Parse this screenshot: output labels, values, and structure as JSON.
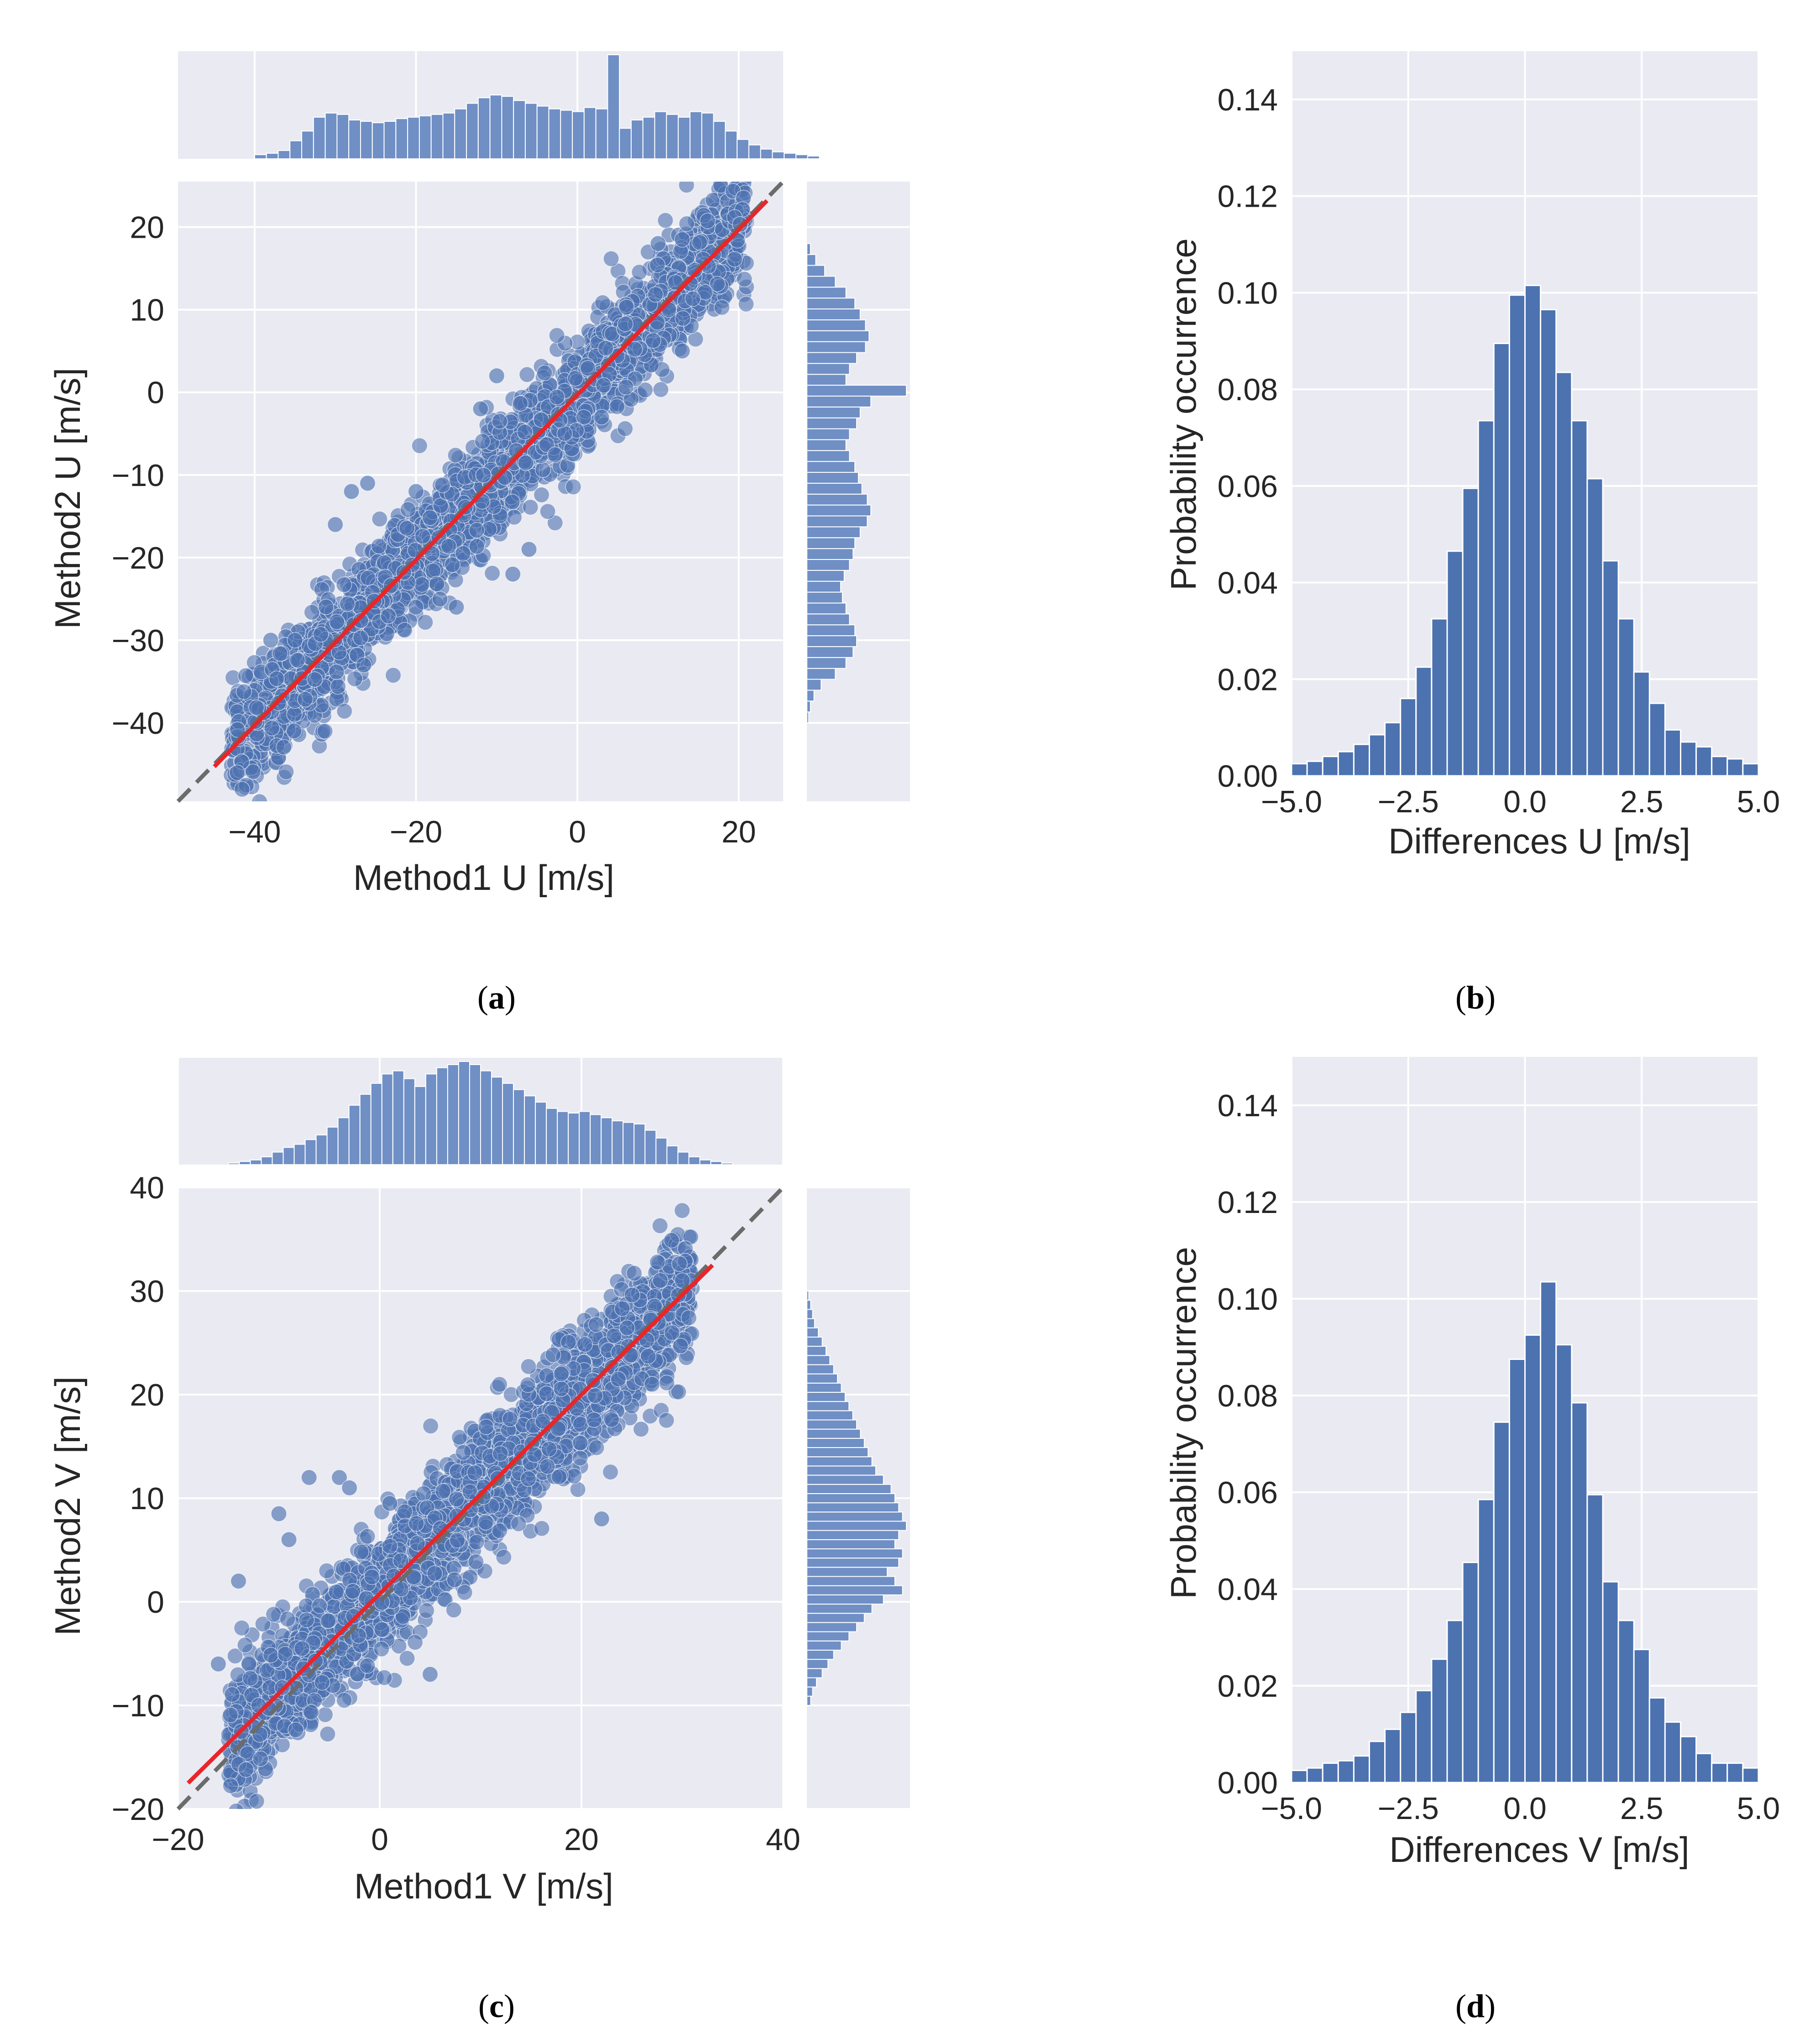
{
  "chart_data": [
    {
      "id": "a",
      "type": "scatter",
      "caption": "a",
      "xlabel": "Method1 U [m/s]",
      "ylabel": "Method2 U [m/s]",
      "xlim": [
        -49.5,
        25.5
      ],
      "ylim": [
        -49.5,
        25.5
      ],
      "xticks": [
        -40,
        -20,
        0,
        20
      ],
      "xtick_labels": [
        "−40",
        "−20",
        "0",
        "20"
      ],
      "yticks": [
        -40,
        -30,
        -20,
        -10,
        0,
        10,
        20
      ],
      "ytick_labels": [
        "−40",
        "−30",
        "−20",
        "−10",
        "0",
        "10",
        "20"
      ],
      "identity_line": true,
      "fit_line": {
        "x": [
          -45,
          23.5
        ],
        "y": [
          -45.3,
          23.2
        ],
        "color": "#e8262a"
      },
      "scatter_spec": {
        "n": 2800,
        "x_range": [
          -43,
          21
        ],
        "slope": 1.0,
        "intercept": -0.2,
        "noise": 3.4,
        "seed": 11
      },
      "points": [
        {
          "x": -28,
          "y": -12
        },
        {
          "x": -30,
          "y": -16
        },
        {
          "x": -26,
          "y": -11
        },
        {
          "x": -15,
          "y": -26
        },
        {
          "x": -8,
          "y": -22
        },
        {
          "x": 3,
          "y": -3
        },
        {
          "x": 10,
          "y": 18
        },
        {
          "x": 13,
          "y": 5
        },
        {
          "x": -10,
          "y": 2
        },
        {
          "x": -20,
          "y": -12
        },
        {
          "x": -35,
          "y": -30
        },
        {
          "x": 13,
          "y": 18.5
        },
        {
          "x": -6,
          "y": -19
        },
        {
          "x": -12,
          "y": -2
        },
        {
          "x": -38,
          "y": -30
        }
      ],
      "marg_x": {
        "range": [
          -40,
          30
        ],
        "counts": [
          3,
          4,
          6,
          13,
          20,
          30,
          33,
          32,
          28,
          27,
          26,
          27,
          29,
          30,
          31,
          32,
          33,
          36,
          40,
          44,
          46,
          45,
          42,
          40,
          38,
          36,
          35,
          34,
          37,
          36,
          75,
          22,
          28,
          30,
          34,
          32,
          30,
          34,
          33,
          27,
          20,
          14,
          10,
          7,
          5,
          4,
          3,
          2
        ]
      },
      "marg_y": {
        "range": [
          -40,
          18
        ],
        "counts": [
          1,
          2,
          4,
          8,
          16,
          22,
          26,
          28,
          27,
          24,
          22,
          20,
          19,
          21,
          24,
          26,
          27,
          30,
          34,
          36,
          34,
          31,
          29,
          27,
          24,
          22,
          24,
          28,
          30,
          36,
          56,
          22,
          24,
          28,
          33,
          35,
          33,
          30,
          27,
          22,
          16,
          10,
          5,
          2
        ]
      }
    },
    {
      "id": "b",
      "type": "bar",
      "caption": "b",
      "xlabel": "Differences U [m/s]",
      "ylabel": "Probability occurrence",
      "xlim": [
        -5.0,
        5.0
      ],
      "ylim": [
        0.0,
        0.15
      ],
      "xticks": [
        -5.0,
        -2.5,
        0.0,
        2.5,
        5.0
      ],
      "xtick_labels": [
        "−5.0",
        "−2.5",
        "0.0",
        "2.5",
        "5.0"
      ],
      "yticks": [
        0.0,
        0.02,
        0.04,
        0.06,
        0.08,
        0.1,
        0.12,
        0.14
      ],
      "ytick_labels": [
        "0.00",
        "0.02",
        "0.04",
        "0.06",
        "0.08",
        "0.10",
        "0.12",
        "0.14"
      ],
      "bin_edges_range": [
        -5.0,
        5.0
      ],
      "values": [
        0.0025,
        0.003,
        0.004,
        0.005,
        0.0065,
        0.0085,
        0.011,
        0.016,
        0.0225,
        0.0325,
        0.0465,
        0.0595,
        0.0735,
        0.0895,
        0.0995,
        0.1015,
        0.0965,
        0.0835,
        0.0735,
        0.0615,
        0.0445,
        0.0325,
        0.0215,
        0.015,
        0.0095,
        0.007,
        0.006,
        0.004,
        0.0035,
        0.0025
      ]
    },
    {
      "id": "c",
      "type": "scatter",
      "caption": "c",
      "xlabel": "Method1 V [m/s]",
      "ylabel": "Method2 V [m/s]",
      "xlim": [
        -20,
        40
      ],
      "ylim": [
        -20,
        40
      ],
      "xticks": [
        -20,
        0,
        20,
        40
      ],
      "xtick_labels": [
        "−20",
        "0",
        "20",
        "40"
      ],
      "yticks": [
        -20,
        -10,
        0,
        10,
        20,
        30,
        40
      ],
      "ytick_labels": [
        "−20",
        "−10",
        "0",
        "10",
        "20",
        "30",
        "40"
      ],
      "identity_line": true,
      "fit_line": {
        "x": [
          -19,
          33
        ],
        "y": [
          -17.5,
          32.5
        ],
        "color": "#e8262a"
      },
      "scatter_spec": {
        "n": 2800,
        "x_range": [
          -15,
          31
        ],
        "slope": 0.96,
        "intercept": 0.8,
        "noise": 3.0,
        "seed": 23
      },
      "points": [
        {
          "x": -7,
          "y": 12
        },
        {
          "x": -10,
          "y": 8.5
        },
        {
          "x": -4,
          "y": 12
        },
        {
          "x": 22,
          "y": 8
        },
        {
          "x": -16,
          "y": -6
        },
        {
          "x": -14,
          "y": 2
        },
        {
          "x": -12,
          "y": -10
        },
        {
          "x": 27,
          "y": 21
        },
        {
          "x": 30,
          "y": 31
        },
        {
          "x": 5,
          "y": -7
        },
        {
          "x": 1,
          "y": 9.5
        },
        {
          "x": -9,
          "y": 6
        },
        {
          "x": 18,
          "y": 22
        },
        {
          "x": -3,
          "y": 11
        }
      ],
      "marg_x": {
        "range": [
          -15,
          35
        ],
        "counts": [
          1,
          2,
          3,
          5,
          8,
          11,
          13,
          16,
          19,
          24,
          30,
          38,
          45,
          52,
          58,
          60,
          55,
          50,
          58,
          62,
          64,
          66,
          64,
          60,
          56,
          52,
          48,
          44,
          40,
          36,
          34,
          33,
          34,
          32,
          30,
          28,
          27,
          26,
          22,
          17,
          12,
          8,
          5,
          3,
          2,
          1
        ]
      },
      "marg_y": {
        "range": [
          -10,
          30
        ],
        "counts": [
          2,
          3,
          5,
          8,
          11,
          14,
          18,
          22,
          26,
          30,
          34,
          40,
          50,
          46,
          42,
          48,
          50,
          46,
          48,
          52,
          50,
          48,
          46,
          44,
          40,
          36,
          34,
          32,
          30,
          28,
          26,
          24,
          22,
          20,
          18,
          16,
          14,
          12,
          10,
          8,
          6,
          4,
          3,
          2,
          1
        ]
      }
    },
    {
      "id": "d",
      "type": "bar",
      "caption": "d",
      "xlabel": "Differences V [m/s]",
      "ylabel": "Probability occurrence",
      "xlim": [
        -5.0,
        5.0
      ],
      "ylim": [
        0.0,
        0.15
      ],
      "xticks": [
        -5.0,
        -2.5,
        0.0,
        2.5,
        5.0
      ],
      "xtick_labels": [
        "−5.0",
        "−2.5",
        "0.0",
        "2.5",
        "5.0"
      ],
      "yticks": [
        0.0,
        0.02,
        0.04,
        0.06,
        0.08,
        0.1,
        0.12,
        0.14
      ],
      "ytick_labels": [
        "0.00",
        "0.02",
        "0.04",
        "0.06",
        "0.08",
        "0.10",
        "0.12",
        "0.14"
      ],
      "bin_edges_range": [
        -5.0,
        5.0
      ],
      "values": [
        0.0025,
        0.003,
        0.004,
        0.0045,
        0.0055,
        0.0085,
        0.011,
        0.0145,
        0.019,
        0.0255,
        0.0335,
        0.0455,
        0.0585,
        0.0745,
        0.0875,
        0.0925,
        0.1035,
        0.0905,
        0.0785,
        0.0595,
        0.0415,
        0.0335,
        0.0275,
        0.0175,
        0.0125,
        0.0095,
        0.006,
        0.004,
        0.004,
        0.003
      ]
    }
  ]
}
